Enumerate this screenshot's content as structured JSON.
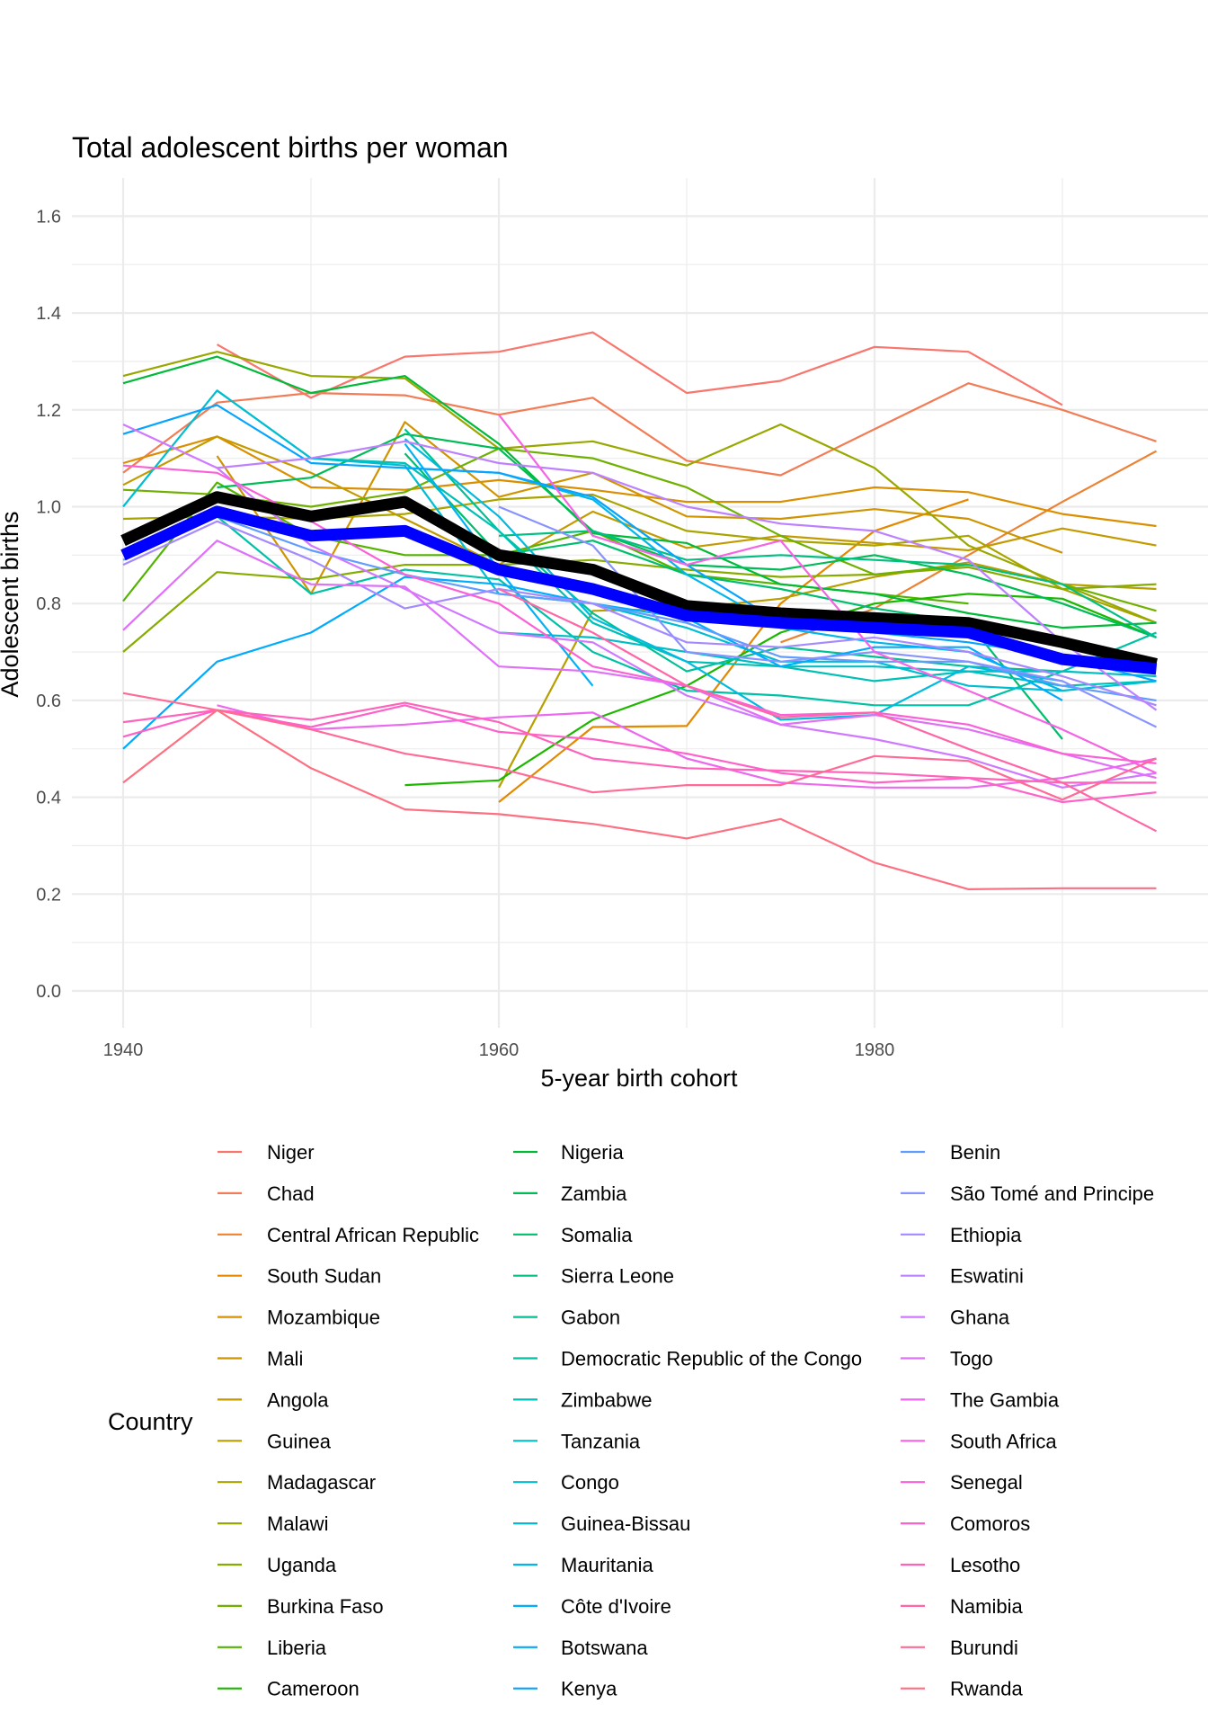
{
  "chart_data": {
    "type": "line",
    "title": "Total adolescent births per woman",
    "xlabel": "5-year birth cohort",
    "ylabel": "Adolescent births",
    "xlim": [
      1937,
      1999
    ],
    "ylim": [
      -0.07,
      1.67
    ],
    "x_ticks": [
      1940,
      1960,
      1980
    ],
    "y_ticks": [
      0.0,
      0.2,
      0.4,
      0.6,
      0.8,
      1.0,
      1.2,
      1.4,
      1.6
    ],
    "y_tick_labels": [
      "0.0",
      "0.2",
      "0.4",
      "0.6",
      "0.8",
      "1.0",
      "1.2",
      "1.4",
      "1.6"
    ],
    "x_tick_labels": [
      "1940",
      "1960",
      "1980"
    ],
    "grid": true,
    "legend_title": "Country",
    "legend_position": "bottom",
    "palette": "ggplot-hue",
    "x": [
      1940,
      1945,
      1950,
      1955,
      1960,
      1965,
      1970,
      1975,
      1980,
      1985,
      1990,
      1995
    ],
    "series": [
      {
        "name": "Niger",
        "values": [
          null,
          1.335,
          1.225,
          1.31,
          1.32,
          1.36,
          1.235,
          1.26,
          1.33,
          1.32,
          1.21,
          null
        ]
      },
      {
        "name": "Chad",
        "values": [
          1.07,
          1.215,
          1.235,
          1.23,
          1.19,
          1.225,
          1.095,
          1.065,
          1.16,
          1.255,
          1.2,
          1.135
        ]
      },
      {
        "name": "Central African Republic",
        "values": [
          null,
          null,
          null,
          null,
          null,
          null,
          null,
          0.72,
          0.79,
          0.9,
          1.01,
          1.115
        ]
      },
      {
        "name": "South Sudan",
        "values": [
          null,
          null,
          null,
          null,
          0.39,
          0.545,
          0.547,
          0.8,
          0.95,
          1.015,
          null,
          null
        ]
      },
      {
        "name": "Mozambique",
        "values": [
          1.09,
          1.145,
          1.04,
          1.035,
          1.055,
          1.035,
          1.01,
          1.01,
          1.04,
          1.03,
          0.985,
          0.96
        ]
      },
      {
        "name": "Mali",
        "values": [
          null,
          1.105,
          0.82,
          1.175,
          1.02,
          1.07,
          0.98,
          0.975,
          0.995,
          0.975,
          0.905,
          null
        ]
      },
      {
        "name": "Angola",
        "values": [
          1.045,
          1.145,
          1.07,
          0.975,
          0.88,
          0.99,
          0.915,
          0.94,
          0.925,
          0.91,
          0.955,
          0.92
        ]
      },
      {
        "name": "Guinea",
        "values": [
          null,
          null,
          null,
          null,
          0.42,
          0.785,
          0.79,
          0.81,
          0.855,
          0.885,
          0.84,
          0.83
        ]
      },
      {
        "name": "Madagascar",
        "values": [
          0.975,
          0.98,
          0.975,
          0.985,
          1.015,
          1.025,
          0.95,
          0.93,
          0.92,
          0.94,
          0.83,
          0.76
        ]
      },
      {
        "name": "Malawi",
        "values": [
          1.27,
          1.32,
          1.27,
          1.265,
          1.12,
          1.135,
          1.085,
          1.17,
          1.08,
          0.92,
          0.84,
          0.76
        ]
      },
      {
        "name": "Uganda",
        "values": [
          0.7,
          0.865,
          0.85,
          0.88,
          0.88,
          0.89,
          0.87,
          0.855,
          0.86,
          0.875,
          0.83,
          0.84
        ]
      },
      {
        "name": "Burkina Faso",
        "values": [
          1.035,
          1.025,
          1.0,
          1.03,
          1.12,
          1.1,
          1.04,
          0.94,
          0.86,
          0.88,
          0.84,
          0.785
        ]
      },
      {
        "name": "Liberia",
        "values": [
          0.805,
          1.05,
          0.94,
          0.9,
          0.9,
          0.95,
          0.86,
          0.84,
          0.82,
          0.8,
          null,
          null
        ]
      },
      {
        "name": "Cameroon",
        "values": [
          null,
          null,
          null,
          0.425,
          0.435,
          0.56,
          0.63,
          0.74,
          0.8,
          0.82,
          0.81,
          0.73
        ]
      },
      {
        "name": "Nigeria",
        "values": [
          1.255,
          1.31,
          1.235,
          1.27,
          1.13,
          0.945,
          0.925,
          0.84,
          0.82,
          0.78,
          0.75,
          0.76
        ]
      },
      {
        "name": "Zambia",
        "values": [
          null,
          1.04,
          1.06,
          1.15,
          1.12,
          0.95,
          0.88,
          0.87,
          0.9,
          0.86,
          0.8,
          0.73
        ]
      },
      {
        "name": "Somalia",
        "values": [
          null,
          null,
          null,
          1.11,
          0.9,
          0.93,
          0.86,
          0.83,
          0.79,
          0.76,
          0.52,
          null
        ]
      },
      {
        "name": "Sierra Leone",
        "values": [
          null,
          null,
          null,
          null,
          0.94,
          0.95,
          0.89,
          0.9,
          0.89,
          0.88,
          0.84,
          0.73
        ]
      },
      {
        "name": "Gabon",
        "values": [
          null,
          null,
          null,
          1.16,
          0.95,
          0.78,
          0.66,
          0.71,
          0.69,
          0.67,
          0.66,
          null
        ]
      },
      {
        "name": "Democratic Republic of the Congo",
        "values": [
          null,
          0.98,
          0.82,
          0.87,
          0.85,
          0.7,
          0.62,
          0.61,
          0.59,
          0.59,
          0.66,
          0.74
        ]
      },
      {
        "name": "Zimbabwe",
        "values": [
          null,
          1.24,
          1.1,
          1.09,
          0.95,
          0.76,
          0.68,
          0.67,
          0.64,
          0.66,
          0.63,
          0.64
        ]
      },
      {
        "name": "Tanzania",
        "values": [
          null,
          null,
          null,
          null,
          0.74,
          0.73,
          0.7,
          0.67,
          0.67,
          0.66,
          0.66,
          0.65
        ]
      },
      {
        "name": "Congo",
        "values": [
          1.0,
          1.24,
          1.1,
          1.085,
          0.82,
          0.8,
          0.75,
          0.68,
          0.68,
          0.63,
          0.62,
          0.64
        ]
      },
      {
        "name": "Guinea-Bissau",
        "values": [
          null,
          null,
          null,
          1.14,
          0.98,
          0.77,
          0.68,
          0.56,
          0.57,
          0.67,
          0.64,
          null
        ]
      },
      {
        "name": "Mauritania",
        "values": [
          null,
          null,
          null,
          1.08,
          1.07,
          1.015,
          0.86,
          0.75,
          0.72,
          0.7,
          0.62,
          null
        ]
      },
      {
        "name": "Côte d'Ivoire",
        "values": [
          null,
          null,
          null,
          1.13,
          0.87,
          0.63,
          null,
          null,
          null,
          null,
          null,
          null
        ]
      },
      {
        "name": "Botswana",
        "values": [
          0.5,
          0.68,
          0.74,
          0.855,
          0.84,
          0.8,
          0.77,
          0.67,
          0.71,
          0.71,
          0.6,
          null
        ]
      },
      {
        "name": "Kenya",
        "values": [
          1.15,
          1.21,
          1.09,
          1.08,
          1.07,
          1.02,
          0.88,
          0.76,
          0.74,
          0.72,
          0.69,
          0.64
        ]
      },
      {
        "name": "Benin",
        "values": [
          0.89,
          0.98,
          0.91,
          0.86,
          0.82,
          0.8,
          0.76,
          0.69,
          0.68,
          0.68,
          0.63,
          0.6
        ]
      },
      {
        "name": "São Tomé and Principe",
        "values": [
          null,
          null,
          null,
          null,
          1.0,
          0.92,
          0.7,
          0.68,
          0.7,
          0.68,
          0.64,
          0.545
        ]
      },
      {
        "name": "Ethiopia",
        "values": [
          0.88,
          0.97,
          0.89,
          0.79,
          0.83,
          0.8,
          0.72,
          0.71,
          0.73,
          0.7,
          0.65,
          0.59
        ]
      },
      {
        "name": "Eswatini",
        "values": [
          null,
          1.08,
          1.1,
          1.135,
          1.09,
          1.07,
          1.0,
          0.965,
          0.95,
          0.89,
          0.72,
          0.58
        ]
      },
      {
        "name": "Ghana",
        "values": [
          1.17,
          1.08,
          0.92,
          0.83,
          0.74,
          0.72,
          0.61,
          0.55,
          0.52,
          0.48,
          0.42,
          0.45
        ]
      },
      {
        "name": "Togo",
        "values": [
          0.745,
          0.93,
          0.84,
          0.835,
          0.67,
          0.66,
          0.63,
          0.55,
          0.57,
          0.54,
          0.49,
          0.44
        ]
      },
      {
        "name": "The Gambia",
        "values": [
          null,
          0.59,
          0.54,
          0.55,
          0.565,
          0.575,
          0.48,
          0.43,
          0.42,
          0.42,
          0.44,
          0.48
        ]
      },
      {
        "name": "South Africa",
        "values": [
          null,
          null,
          null,
          null,
          1.19,
          0.94,
          0.88,
          0.93,
          0.7,
          0.62,
          0.54,
          0.45
        ]
      },
      {
        "name": "Senegal",
        "values": [
          1.085,
          1.07,
          0.97,
          0.86,
          0.8,
          0.67,
          0.63,
          0.57,
          0.575,
          0.55,
          0.49,
          0.47
        ]
      },
      {
        "name": "Comoros",
        "values": [
          0.525,
          0.58,
          0.545,
          0.59,
          0.535,
          0.52,
          0.49,
          0.45,
          0.43,
          0.44,
          0.39,
          0.41
        ]
      },
      {
        "name": "Lesotho",
        "values": [
          0.555,
          0.58,
          0.56,
          0.595,
          0.555,
          0.48,
          0.46,
          0.455,
          0.45,
          0.44,
          0.43,
          0.43
        ]
      },
      {
        "name": "Namibia",
        "values": [
          null,
          null,
          null,
          null,
          0.83,
          0.74,
          0.63,
          0.565,
          0.575,
          0.5,
          0.43,
          0.33
        ]
      },
      {
        "name": "Burundi",
        "values": [
          0.615,
          0.58,
          0.54,
          0.49,
          0.46,
          0.41,
          0.425,
          0.425,
          0.485,
          0.475,
          0.395,
          0.48
        ]
      },
      {
        "name": "Rwanda",
        "values": [
          0.43,
          0.58,
          0.46,
          0.375,
          0.365,
          0.345,
          0.315,
          0.355,
          0.265,
          0.21,
          0.212,
          0.212
        ]
      }
    ],
    "highlight_series": [
      {
        "color": "#000000",
        "values": [
          0.93,
          1.02,
          0.98,
          1.01,
          0.9,
          0.87,
          0.795,
          0.78,
          0.77,
          0.76,
          0.72,
          0.675
        ]
      },
      {
        "color": "#0000FF",
        "values": [
          0.9,
          0.99,
          0.94,
          0.95,
          0.87,
          0.83,
          0.775,
          0.76,
          0.75,
          0.74,
          0.685,
          0.665
        ]
      }
    ]
  }
}
